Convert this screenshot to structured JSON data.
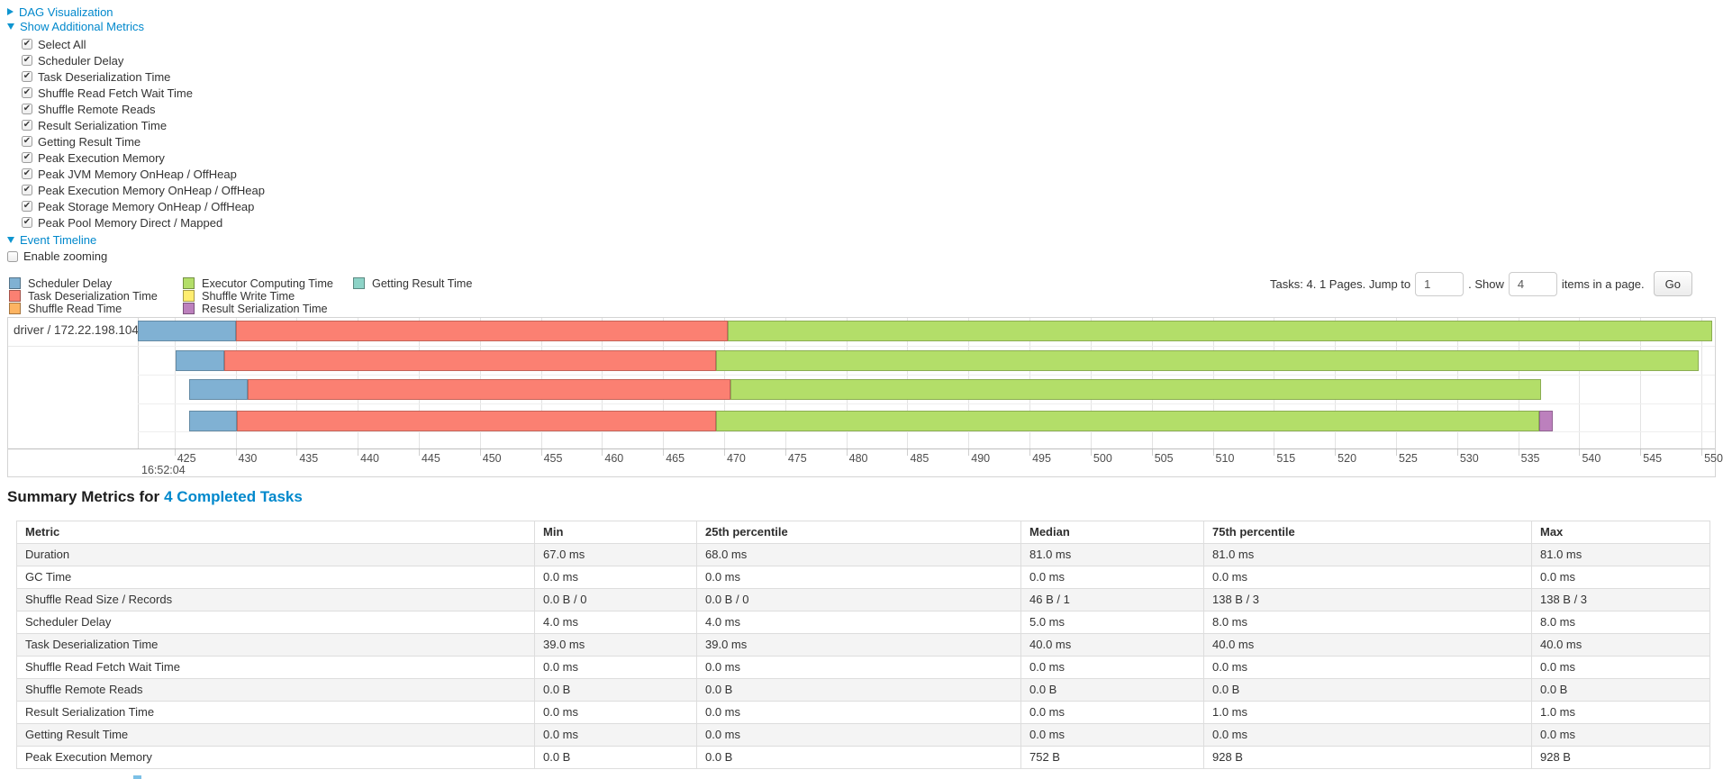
{
  "page": {
    "dag_section": {
      "label": "DAG Visualization",
      "collapsed": true
    },
    "metrics_section": {
      "label": "Show Additional Metrics"
    },
    "metric_checkboxes": [
      {
        "label": "Select All",
        "checked": true
      },
      {
        "label": "Scheduler Delay",
        "checked": true
      },
      {
        "label": "Task Deserialization Time",
        "checked": true
      },
      {
        "label": "Shuffle Read Fetch Wait Time",
        "checked": true
      },
      {
        "label": "Shuffle Remote Reads",
        "checked": true
      },
      {
        "label": "Result Serialization Time",
        "checked": true
      },
      {
        "label": "Getting Result Time",
        "checked": true
      },
      {
        "label": "Peak Execution Memory",
        "checked": true
      },
      {
        "label": "Peak JVM Memory OnHeap / OffHeap",
        "checked": true
      },
      {
        "label": "Peak Execution Memory OnHeap / OffHeap",
        "checked": true
      },
      {
        "label": "Peak Storage Memory OnHeap / OffHeap",
        "checked": true
      },
      {
        "label": "Peak Pool Memory Direct / Mapped",
        "checked": true
      }
    ],
    "timeline_section": {
      "label": "Event Timeline"
    },
    "enable_zooming": {
      "label": "Enable zooming",
      "checked": false
    },
    "legend_columns": [
      [
        {
          "label": "Scheduler Delay",
          "color": "#80B1D3"
        },
        {
          "label": "Task Deserialization Time",
          "color": "#FB8072"
        },
        {
          "label": "Shuffle Read Time",
          "color": "#FDB462"
        }
      ],
      [
        {
          "label": "Executor Computing Time",
          "color": "#B3DE69"
        },
        {
          "label": "Shuffle Write Time",
          "color": "#FFED6F"
        },
        {
          "label": "Result Serialization Time",
          "color": "#BC80BD"
        }
      ],
      [
        {
          "label": "Getting Result Time",
          "color": "#8DD3C7"
        }
      ]
    ],
    "pagination": {
      "tasks_text": "Tasks: 4. 1 Pages. Jump to",
      "jump_value": "1",
      "show_text": ". Show",
      "show_value": "4",
      "items_text": "items in a page.",
      "go_label": "Go"
    },
    "link_color": "#0088cc"
  },
  "chart_data": {
    "type": "timeline",
    "title": "Event Timeline",
    "group_label": "driver / 172.22.198.104",
    "x_axis": {
      "major_label": "16:52:04",
      "unit": "ms within second 16:52:04",
      "min": 422.0,
      "max": 551.1,
      "ticks": [
        425,
        430,
        435,
        440,
        445,
        450,
        455,
        460,
        465,
        470,
        475,
        480,
        485,
        490,
        495,
        500,
        505,
        510,
        515,
        520,
        525,
        530,
        535,
        540,
        545,
        550
      ]
    },
    "colors": {
      "scheduler_delay": "#80B1D3",
      "task_deserialization": "#FB8072",
      "shuffle_read": "#FDB462",
      "executor_computing": "#B3DE69",
      "shuffle_write": "#FFED6F",
      "result_serialization": "#BC80BD",
      "getting_result": "#8DD3C7"
    },
    "tasks": [
      {
        "segments": [
          {
            "type": "scheduler_delay",
            "start": 422.0,
            "end": 430.0
          },
          {
            "type": "task_deserialization",
            "start": 430.0,
            "end": 470.3
          },
          {
            "type": "executor_computing",
            "start": 470.3,
            "end": 550.9
          }
        ]
      },
      {
        "segments": [
          {
            "type": "scheduler_delay",
            "start": 425.1,
            "end": 429.1
          },
          {
            "type": "task_deserialization",
            "start": 429.1,
            "end": 469.3
          },
          {
            "type": "executor_computing",
            "start": 469.3,
            "end": 549.8
          }
        ]
      },
      {
        "segments": [
          {
            "type": "scheduler_delay",
            "start": 426.2,
            "end": 431.0
          },
          {
            "type": "task_deserialization",
            "start": 431.0,
            "end": 470.5
          },
          {
            "type": "executor_computing",
            "start": 470.5,
            "end": 536.9
          }
        ]
      },
      {
        "segments": [
          {
            "type": "scheduler_delay",
            "start": 426.2,
            "end": 430.1
          },
          {
            "type": "task_deserialization",
            "start": 430.1,
            "end": 469.3
          },
          {
            "type": "executor_computing",
            "start": 469.3,
            "end": 536.7
          },
          {
            "type": "result_serialization",
            "start": 536.7,
            "end": 537.8
          }
        ]
      }
    ]
  },
  "summary": {
    "heading_prefix": "Summary Metrics for",
    "heading_link": "4 Completed Tasks",
    "table": {
      "headers": [
        "Metric",
        "Min",
        "25th percentile",
        "Median",
        "75th percentile",
        "Max"
      ],
      "rows": [
        [
          "Duration",
          "67.0 ms",
          "68.0 ms",
          "81.0 ms",
          "81.0 ms",
          "81.0 ms"
        ],
        [
          "GC Time",
          "0.0 ms",
          "0.0 ms",
          "0.0 ms",
          "0.0 ms",
          "0.0 ms"
        ],
        [
          "Shuffle Read Size / Records",
          "0.0 B / 0",
          "0.0 B / 0",
          "46 B / 1",
          "138 B / 3",
          "138 B / 3"
        ],
        [
          "Scheduler Delay",
          "4.0 ms",
          "4.0 ms",
          "5.0 ms",
          "8.0 ms",
          "8.0 ms"
        ],
        [
          "Task Deserialization Time",
          "39.0 ms",
          "39.0 ms",
          "40.0 ms",
          "40.0 ms",
          "40.0 ms"
        ],
        [
          "Shuffle Read Fetch Wait Time",
          "0.0 ms",
          "0.0 ms",
          "0.0 ms",
          "0.0 ms",
          "0.0 ms"
        ],
        [
          "Shuffle Remote Reads",
          "0.0 B",
          "0.0 B",
          "0.0 B",
          "0.0 B",
          "0.0 B"
        ],
        [
          "Result Serialization Time",
          "0.0 ms",
          "0.0 ms",
          "0.0 ms",
          "1.0 ms",
          "1.0 ms"
        ],
        [
          "Getting Result Time",
          "0.0 ms",
          "0.0 ms",
          "0.0 ms",
          "0.0 ms",
          "0.0 ms"
        ],
        [
          "Peak Execution Memory",
          "0.0 B",
          "0.0 B",
          "752 B",
          "928 B",
          "928 B"
        ]
      ]
    }
  }
}
